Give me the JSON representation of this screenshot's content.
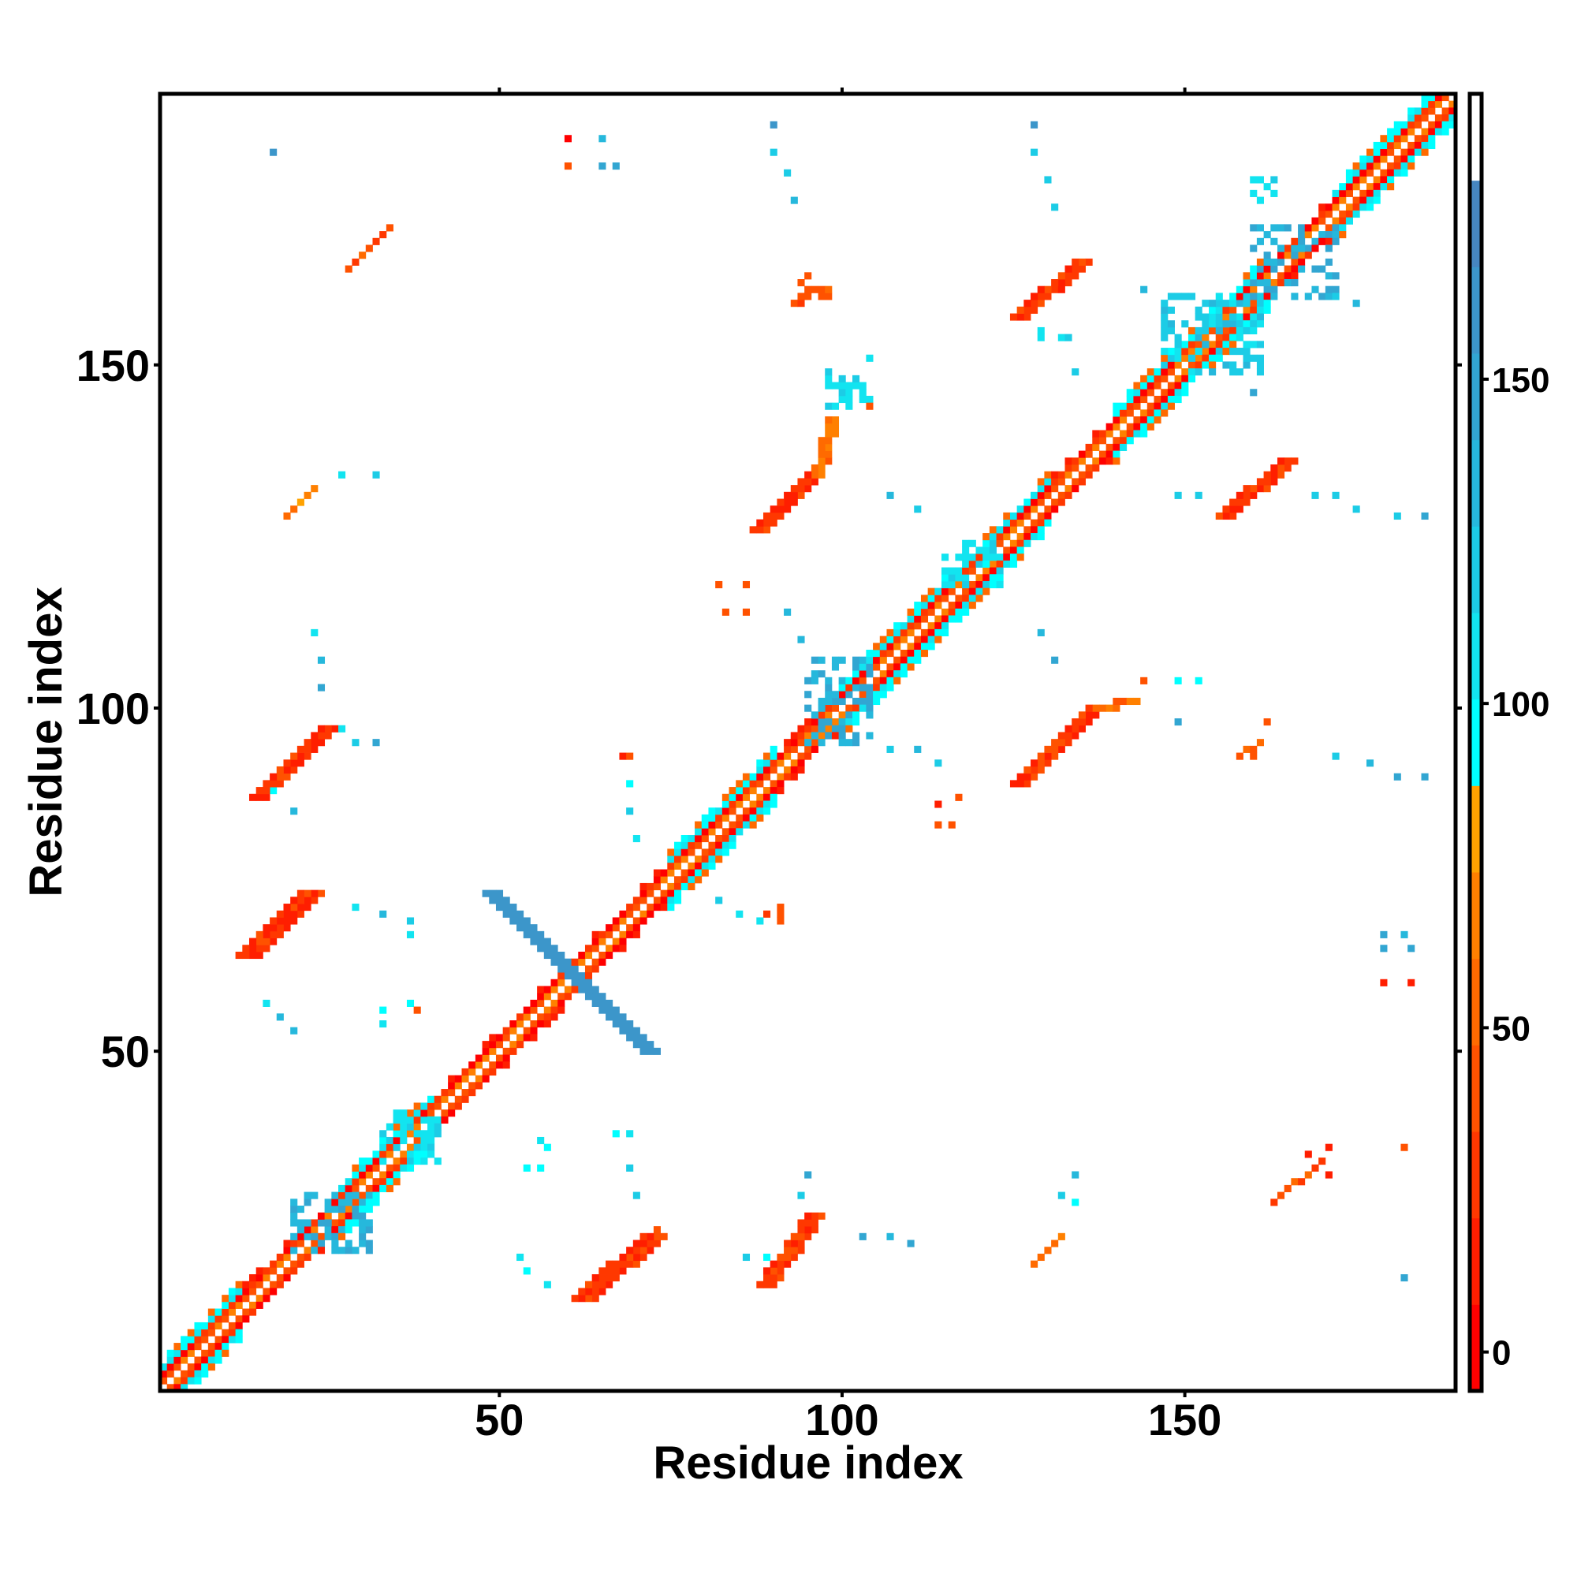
{
  "chart_data": {
    "type": "heatmap",
    "title": "",
    "xlabel": "Residue index",
    "ylabel": "Residue index",
    "xlim": [
      0.5,
      189.5
    ],
    "ylim": [
      0.5,
      189.5
    ],
    "n_residues": 189,
    "x_ticks": [
      50,
      100,
      150
    ],
    "y_ticks": [
      50,
      100,
      150
    ],
    "x_tick_labels": [
      "50",
      "100",
      "150"
    ],
    "y_tick_labels": [
      "50",
      "100",
      "150"
    ],
    "colorbar": {
      "range": [
        -6,
        194
      ],
      "ticks": [
        0,
        50,
        100,
        150
      ],
      "tick_labels": [
        "0",
        "50",
        "100",
        "150"
      ],
      "colors": [
        "#ff0000",
        "#ff1e00",
        "#ff3800",
        "#ff5200",
        "#ff6a00",
        "#ff8000",
        "#ffa200",
        "#00ffff",
        "#12e4f0",
        "#1ccce6",
        "#26b8dc",
        "#32a6d2",
        "#3c96ca",
        "#4686c0",
        "#ffffff"
      ]
    },
    "diagonal": {
      "helix_ranges": [
        [
          1,
          12
        ],
        [
          26,
          40
        ],
        [
          75,
          90
        ],
        [
          100,
          130
        ],
        [
          140,
          162
        ],
        [
          172,
          189
        ]
      ],
      "strand_ranges": [
        [
          13,
          25
        ],
        [
          41,
          74
        ],
        [
          91,
          99
        ],
        [
          131,
          139
        ],
        [
          163,
          171
        ]
      ]
    },
    "lines": [
      {
        "from": [
          50,
          73
        ],
        "to": [
          73,
          50
        ],
        "width": 3,
        "value": 160
      },
      {
        "from": [
          64,
          14
        ],
        "to": [
          74,
          23
        ],
        "width": 4,
        "value": 8
      },
      {
        "from": [
          15,
          64
        ],
        "to": [
          24,
          73
        ],
        "width": 4,
        "value": 8
      },
      {
        "from": [
          90,
          16
        ],
        "to": [
          97,
          26
        ],
        "width": 3,
        "value": 15
      },
      {
        "from": [
          16,
          87
        ],
        "to": [
          26,
          97
        ],
        "width": 3,
        "value": 8
      },
      {
        "from": [
          127,
          89
        ],
        "to": [
          138,
          100
        ],
        "width": 3,
        "value": 10
      },
      {
        "from": [
          138,
          100
        ],
        "to": [
          143,
          101
        ],
        "width": 2,
        "value": 45
      },
      {
        "from": [
          89,
          126
        ],
        "to": [
          97,
          134
        ],
        "width": 3,
        "value": 10
      },
      {
        "from": [
          97,
          134
        ],
        "to": [
          99,
          142
        ],
        "width": 2,
        "value": 45
      },
      {
        "from": [
          127,
          157
        ],
        "to": [
          136,
          165
        ],
        "width": 3,
        "value": 10
      },
      {
        "from": [
          157,
          128
        ],
        "to": [
          166,
          136
        ],
        "width": 3,
        "value": 10
      },
      {
        "from": [
          19,
          128
        ],
        "to": [
          23,
          132
        ],
        "width": 1,
        "value": 45
      },
      {
        "from": [
          128,
          19
        ],
        "to": [
          132,
          23
        ],
        "width": 1,
        "value": 45
      },
      {
        "from": [
          28,
          164
        ],
        "to": [
          34,
          170
        ],
        "width": 1,
        "value": 30
      },
      {
        "from": [
          163,
          28
        ],
        "to": [
          170,
          34
        ],
        "width": 1,
        "value": 30
      },
      {
        "from": [
          158,
          93
        ],
        "to": [
          161,
          95
        ],
        "width": 1,
        "value": 40
      }
    ],
    "blobs": [
      [
        160,
        172,
        160,
        170,
        140
      ],
      [
        95,
        104,
        95,
        107,
        140
      ],
      [
        20,
        31,
        21,
        29,
        140
      ],
      [
        33,
        41,
        34,
        41,
        110
      ],
      [
        115,
        123,
        118,
        124,
        110
      ],
      [
        147,
        161,
        149,
        160,
        120
      ],
      [
        98,
        104,
        144,
        148,
        110
      ],
      [
        129,
        133,
        154,
        156,
        110
      ],
      [
        160,
        163,
        174,
        177,
        110
      ],
      [
        93,
        98,
        159,
        163,
        40
      ],
      [
        88,
        91,
        69,
        71,
        40
      ]
    ],
    "points": [
      [
        17,
        181,
        160
      ],
      [
        60,
        183,
        5
      ],
      [
        60,
        179,
        40
      ],
      [
        65,
        183,
        140
      ],
      [
        65,
        179,
        150
      ],
      [
        67,
        179,
        150
      ],
      [
        90,
        185,
        160
      ],
      [
        90,
        181,
        120
      ],
      [
        92,
        178,
        120
      ],
      [
        93,
        174,
        130
      ],
      [
        128,
        185,
        160
      ],
      [
        128,
        181,
        120
      ],
      [
        130,
        177,
        120
      ],
      [
        131,
        173,
        120
      ],
      [
        32,
        134,
        120
      ],
      [
        27,
        134,
        110
      ],
      [
        98,
        149,
        120
      ],
      [
        104,
        151,
        110
      ],
      [
        104,
        144,
        40
      ],
      [
        107,
        131,
        140
      ],
      [
        111,
        129,
        120
      ],
      [
        149,
        131,
        120
      ],
      [
        152,
        131,
        120
      ],
      [
        169,
        131,
        120
      ],
      [
        172,
        131,
        120
      ],
      [
        175,
        129,
        120
      ],
      [
        181,
        128,
        120
      ],
      [
        185,
        128,
        150
      ],
      [
        144,
        161,
        130
      ],
      [
        149,
        160,
        120
      ],
      [
        154,
        159,
        130
      ],
      [
        172,
        160,
        120
      ],
      [
        175,
        159,
        130
      ],
      [
        159,
        150,
        140
      ],
      [
        160,
        146,
        150
      ],
      [
        134,
        149,
        120
      ],
      [
        82,
        118,
        40
      ],
      [
        86,
        118,
        40
      ],
      [
        86,
        114,
        40
      ],
      [
        83,
        114,
        40
      ],
      [
        92,
        114,
        140
      ],
      [
        94,
        110,
        140
      ],
      [
        129,
        111,
        140
      ],
      [
        131,
        107,
        150
      ],
      [
        144,
        104,
        40
      ],
      [
        149,
        104,
        100
      ],
      [
        152,
        104,
        100
      ],
      [
        149,
        98,
        150
      ],
      [
        162,
        98,
        40
      ],
      [
        160,
        93,
        40
      ],
      [
        172,
        93,
        120
      ],
      [
        177,
        92,
        140
      ],
      [
        181,
        90,
        150
      ],
      [
        185,
        90,
        150
      ],
      [
        114,
        86,
        10
      ],
      [
        117,
        87,
        40
      ],
      [
        114,
        83,
        40
      ],
      [
        116,
        83,
        40
      ],
      [
        107,
        94,
        120
      ],
      [
        111,
        94,
        140
      ],
      [
        114,
        92,
        120
      ],
      [
        68,
        93,
        10
      ],
      [
        69,
        93,
        40
      ],
      [
        69,
        89,
        100
      ],
      [
        69,
        85,
        120
      ],
      [
        70,
        81,
        110
      ],
      [
        82,
        72,
        120
      ],
      [
        85,
        70,
        110
      ],
      [
        88,
        69,
        110
      ],
      [
        91,
        70,
        40
      ],
      [
        179,
        67,
        150
      ],
      [
        182,
        67,
        140
      ],
      [
        179,
        65,
        150
      ],
      [
        183,
        65,
        150
      ],
      [
        179,
        60,
        20
      ],
      [
        183,
        60,
        10
      ],
      [
        23,
        111,
        110
      ],
      [
        24,
        107,
        140
      ],
      [
        24,
        103,
        150
      ],
      [
        27,
        97,
        110
      ],
      [
        32,
        95,
        150
      ],
      [
        29,
        95,
        120
      ],
      [
        17,
        88,
        100
      ],
      [
        20,
        85,
        140
      ],
      [
        29,
        71,
        110
      ],
      [
        33,
        70,
        140
      ],
      [
        37,
        69,
        120
      ],
      [
        37,
        67,
        110
      ],
      [
        16,
        57,
        110
      ],
      [
        18,
        55,
        130
      ],
      [
        20,
        53,
        130
      ],
      [
        33,
        56,
        100
      ],
      [
        33,
        54,
        110
      ],
      [
        37,
        57,
        100
      ],
      [
        38,
        56,
        40
      ],
      [
        56,
        37,
        110
      ],
      [
        57,
        36,
        100
      ],
      [
        54,
        33,
        100
      ],
      [
        56,
        33,
        100
      ],
      [
        67,
        38,
        100
      ],
      [
        69,
        38,
        110
      ],
      [
        69,
        33,
        120
      ],
      [
        70,
        29,
        120
      ],
      [
        73,
        24,
        40
      ],
      [
        53,
        20,
        110
      ],
      [
        54,
        18,
        100
      ],
      [
        57,
        16,
        110
      ],
      [
        95,
        32,
        150
      ],
      [
        94,
        29,
        120
      ],
      [
        103,
        23,
        150
      ],
      [
        107,
        23,
        140
      ],
      [
        110,
        22,
        150
      ],
      [
        86,
        20,
        120
      ],
      [
        89,
        20,
        100
      ],
      [
        134,
        32,
        140
      ],
      [
        132,
        29,
        120
      ],
      [
        134,
        28,
        100
      ],
      [
        182,
        17,
        150
      ],
      [
        182,
        36,
        40
      ],
      [
        171,
        36,
        20
      ],
      [
        171,
        32,
        10
      ],
      [
        168,
        35,
        10
      ]
    ]
  }
}
